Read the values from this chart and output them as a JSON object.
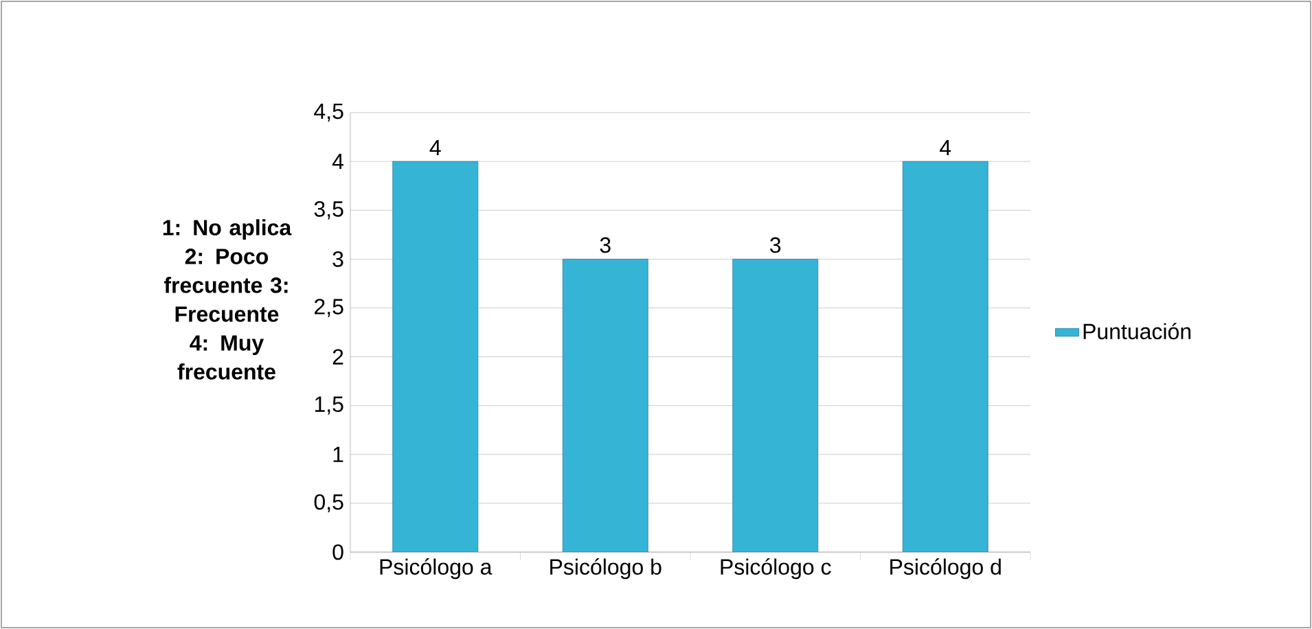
{
  "chart_data": {
    "type": "bar",
    "categories": [
      "Psicólogo a",
      "Psicólogo b",
      "Psicólogo c",
      "Psicólogo d"
    ],
    "series": [
      {
        "name": "Puntuación",
        "color": "#35b4d6",
        "values": [
          4,
          3,
          3,
          4
        ]
      }
    ],
    "ylim": [
      0,
      4.5
    ],
    "yticks": [
      0,
      {
        "value": 0.5,
        "label": "0,5"
      },
      1,
      {
        "value": 1.5,
        "label": "1,5"
      },
      2,
      {
        "value": 2.5,
        "label": "2,5"
      },
      3,
      {
        "value": 3.5,
        "label": "3,5"
      },
      4,
      {
        "value": 4.5,
        "label": "4,5"
      }
    ],
    "grid": "y",
    "legend": "right",
    "data_labels": true,
    "annotations": [
      "1: No aplica 2: Poco frecuente 3: Frecuente 4: Muy frecuente"
    ]
  }
}
